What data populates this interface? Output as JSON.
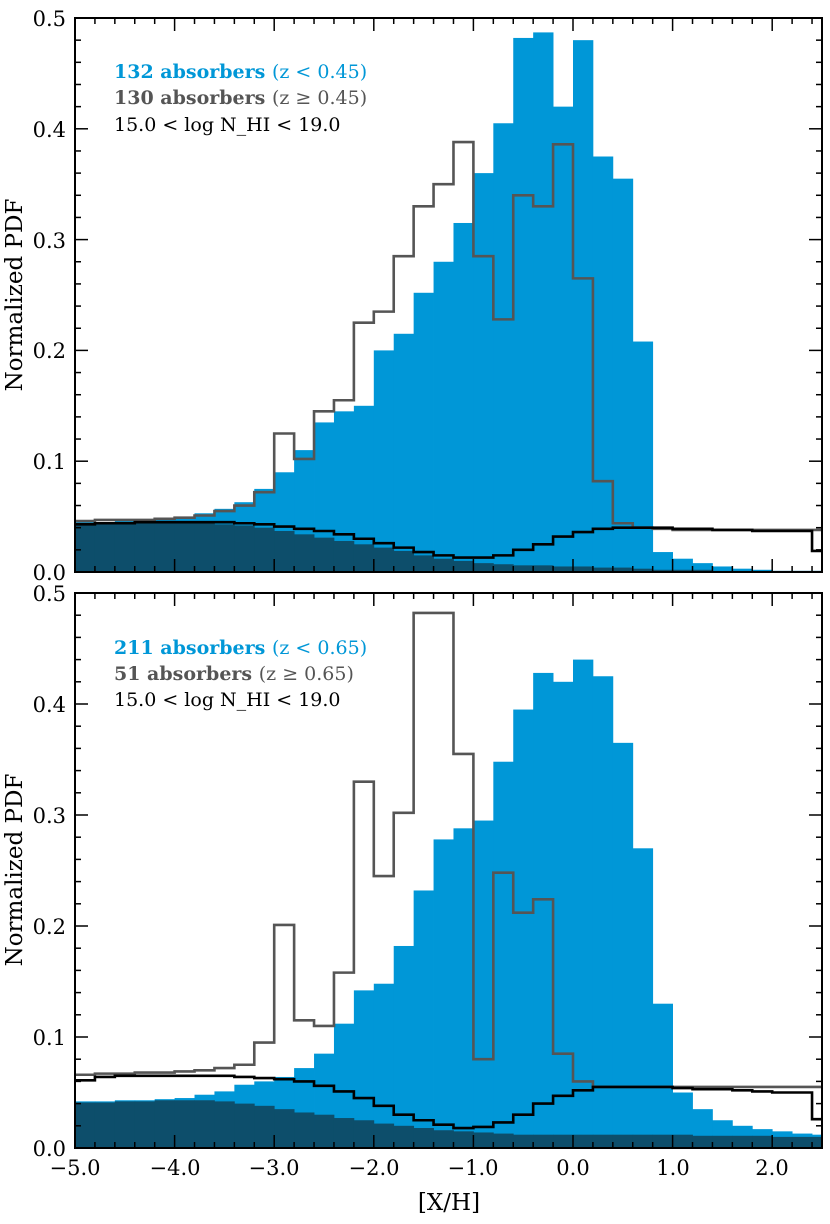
{
  "chart_data": [
    {
      "type": "bar",
      "panel": "top",
      "ylabel": "Normalized PDF",
      "xlim": [
        -5.0,
        2.5
      ],
      "ylim": [
        0.0,
        0.5
      ],
      "yticks": [
        "0.0",
        "0.1",
        "0.2",
        "0.3",
        "0.4",
        "0.5"
      ],
      "legend": {
        "low": {
          "count": "132 absorbers",
          "cond": "(z < 0.45)",
          "color": "#0097d7"
        },
        "high": {
          "count": "130 absorbers",
          "cond": "(z ≥ 0.45)",
          "color": "#555555"
        },
        "range": "15.0 < log N_HI < 19.0"
      },
      "bin_width": 0.2,
      "bin_start": -5.0,
      "series": [
        {
          "name": "z < 0.45 (posterior)",
          "style": "filled",
          "color": "#0097d7",
          "values": [
            0.045,
            0.045,
            0.046,
            0.047,
            0.048,
            0.05,
            0.053,
            0.057,
            0.063,
            0.075,
            0.09,
            0.11,
            0.135,
            0.145,
            0.15,
            0.2,
            0.215,
            0.252,
            0.28,
            0.315,
            0.36,
            0.405,
            0.482,
            0.487,
            0.42,
            0.48,
            0.375,
            0.355,
            0.208,
            0.018,
            0.012,
            0.008,
            0.005,
            0.003,
            0.002,
            0.001,
            0.001,
            0.001
          ]
        },
        {
          "name": "z < 0.45 (prior)",
          "style": "filled",
          "color": "#0d4e6b",
          "values": [
            0.043,
            0.044,
            0.044,
            0.045,
            0.045,
            0.044,
            0.044,
            0.043,
            0.042,
            0.04,
            0.037,
            0.034,
            0.031,
            0.028,
            0.025,
            0.022,
            0.019,
            0.015,
            0.012,
            0.01,
            0.008,
            0.007,
            0.006,
            0.006,
            0.005,
            0.005,
            0.004,
            0.004,
            0.003,
            0.002,
            0.002,
            0.002,
            0.001,
            0.001,
            0.001,
            0.001,
            0.001,
            0.001
          ]
        },
        {
          "name": "z ≥ 0.45 (posterior)",
          "style": "step",
          "color": "#555555",
          "values": [
            0.046,
            0.047,
            0.047,
            0.047,
            0.048,
            0.049,
            0.051,
            0.055,
            0.06,
            0.072,
            0.125,
            0.102,
            0.145,
            0.155,
            0.225,
            0.235,
            0.285,
            0.33,
            0.35,
            0.388,
            0.285,
            0.228,
            0.34,
            0.33,
            0.386,
            0.265,
            0.082,
            0.044,
            0.04,
            0.039,
            0.038,
            0.038,
            0.038,
            0.038,
            0.038,
            0.038,
            0.038,
            0.038
          ]
        },
        {
          "name": "z ≥ 0.45 (prior)",
          "style": "step",
          "color": "#000000",
          "values": [
            0.043,
            0.044,
            0.044,
            0.045,
            0.045,
            0.045,
            0.045,
            0.045,
            0.044,
            0.043,
            0.041,
            0.039,
            0.037,
            0.034,
            0.03,
            0.026,
            0.022,
            0.018,
            0.015,
            0.013,
            0.013,
            0.015,
            0.02,
            0.025,
            0.032,
            0.036,
            0.039,
            0.04,
            0.04,
            0.04,
            0.039,
            0.039,
            0.038,
            0.038,
            0.037,
            0.037,
            0.037,
            0.019
          ]
        }
      ]
    },
    {
      "type": "bar",
      "panel": "bottom",
      "xlabel": "[X/H]",
      "ylabel": "Normalized PDF",
      "xlim": [
        -5.0,
        2.5
      ],
      "ylim": [
        0.0,
        0.5
      ],
      "yticks": [
        "0.0",
        "0.1",
        "0.2",
        "0.3",
        "0.4",
        "0.5"
      ],
      "xticks": [
        "−5.0",
        "−4.0",
        "−3.0",
        "−2.0",
        "−1.0",
        "0.0",
        "1.0",
        "2.0"
      ],
      "legend": {
        "low": {
          "count": "211 absorbers",
          "cond": "(z < 0.65)",
          "color": "#0097d7"
        },
        "high": {
          "count": "51 absorbers",
          "cond": "(z ≥ 0.65)",
          "color": "#555555"
        },
        "range": "15.0 < log N_HI < 19.0"
      },
      "bin_width": 0.2,
      "bin_start": -5.0,
      "series": [
        {
          "name": "z < 0.65 (posterior)",
          "style": "filled",
          "color": "#0097d7",
          "values": [
            0.042,
            0.042,
            0.043,
            0.043,
            0.044,
            0.045,
            0.048,
            0.051,
            0.057,
            0.06,
            0.064,
            0.072,
            0.085,
            0.112,
            0.142,
            0.148,
            0.182,
            0.232,
            0.278,
            0.288,
            0.295,
            0.348,
            0.395,
            0.428,
            0.42,
            0.44,
            0.425,
            0.365,
            0.27,
            0.13,
            0.05,
            0.035,
            0.025,
            0.02,
            0.017,
            0.015,
            0.013,
            0.012
          ]
        },
        {
          "name": "z < 0.65 (prior)",
          "style": "filled",
          "color": "#0d4e6b",
          "values": [
            0.041,
            0.041,
            0.042,
            0.042,
            0.043,
            0.043,
            0.043,
            0.042,
            0.04,
            0.038,
            0.035,
            0.032,
            0.03,
            0.027,
            0.025,
            0.022,
            0.02,
            0.018,
            0.016,
            0.015,
            0.014,
            0.013,
            0.012,
            0.012,
            0.012,
            0.012,
            0.012,
            0.012,
            0.012,
            0.012,
            0.012,
            0.011,
            0.011,
            0.011,
            0.011,
            0.01,
            0.01,
            0.01
          ]
        },
        {
          "name": "z ≥ 0.65 (posterior)",
          "style": "step",
          "color": "#555555",
          "values": [
            0.066,
            0.067,
            0.067,
            0.068,
            0.068,
            0.069,
            0.07,
            0.072,
            0.075,
            0.095,
            0.201,
            0.115,
            0.11,
            0.158,
            0.33,
            0.245,
            0.302,
            0.482,
            0.482,
            0.355,
            0.08,
            0.248,
            0.212,
            0.224,
            0.085,
            0.06,
            0.055,
            0.055,
            0.055,
            0.055,
            0.055,
            0.055,
            0.055,
            0.055,
            0.055,
            0.055,
            0.055,
            0.055
          ]
        },
        {
          "name": "z ≥ 0.65 (prior)",
          "style": "step",
          "color": "#000000",
          "values": [
            0.061,
            0.064,
            0.065,
            0.065,
            0.065,
            0.065,
            0.065,
            0.065,
            0.064,
            0.063,
            0.062,
            0.06,
            0.056,
            0.051,
            0.045,
            0.038,
            0.03,
            0.025,
            0.021,
            0.018,
            0.019,
            0.023,
            0.03,
            0.04,
            0.047,
            0.052,
            0.055,
            0.055,
            0.055,
            0.055,
            0.054,
            0.053,
            0.053,
            0.052,
            0.051,
            0.05,
            0.05,
            0.026
          ]
        }
      ]
    }
  ]
}
